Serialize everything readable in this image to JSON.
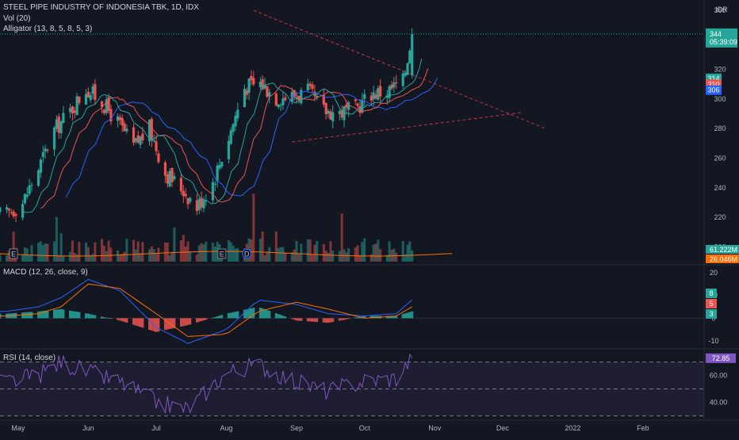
{
  "legend": {
    "symbol_line": "STEEL PIPE INDUSTRY OF INDONESIA TBK, 1D, IDX",
    "vol_line": "Vol (20)",
    "alligator_line": "Alligator (13, 8, 5, 8, 5, 3)",
    "macd_line": "MACD (12, 26, close, 9)",
    "rsi_line": "RSI (14, close)"
  },
  "price_axis": {
    "currency": "IDR",
    "ticks": [
      "360",
      "340",
      "320",
      "300",
      "280",
      "260",
      "240",
      "220",
      "200"
    ],
    "current_price": "344",
    "countdown": "05:39:09",
    "alligator_tags": [
      "314",
      "310",
      "306"
    ],
    "vol_tags": [
      "61.222M",
      "26.046M"
    ]
  },
  "macd_axis": {
    "ticks": [
      "20",
      "10",
      "0",
      "-10"
    ],
    "tags": [
      "8",
      "5",
      "3"
    ]
  },
  "rsi_axis": {
    "ticks": [
      "60.00",
      "40.00"
    ],
    "current": "72.85"
  },
  "time_axis": [
    "May",
    "Jun",
    "Jul",
    "Aug",
    "Sep",
    "Oct",
    "Nov",
    "Dec",
    "2022",
    "Feb"
  ],
  "markers": {
    "earnings": "E",
    "dividend": "D"
  },
  "colors": {
    "background": "#131722",
    "up": "#26a69a",
    "down": "#ef5350",
    "jaw": "#2962ff",
    "teeth": "#ef5350",
    "lips": "#26a69a",
    "macd_line": "#2962ff",
    "signal_line": "#ff6d00",
    "rsi_line": "#7e57c2",
    "trendline": "#f23645"
  },
  "chart_data": [
    {
      "type": "candlestick",
      "title": "STEEL PIPE INDUSTRY OF INDONESIA TBK, 1D, IDX",
      "ylabel": "IDR",
      "ylim": [
        190,
        367
      ],
      "xlim": [
        "2021-04-23",
        "2022-02-28"
      ],
      "grid": false,
      "ohlc_anchors": [
        {
          "date": "2021-04-26",
          "close": 222
        },
        {
          "date": "2021-05-03",
          "close": 230
        },
        {
          "date": "2021-05-10",
          "close": 253
        },
        {
          "date": "2021-05-17",
          "close": 279
        },
        {
          "date": "2021-05-24",
          "close": 292
        },
        {
          "date": "2021-05-31",
          "close": 307
        },
        {
          "date": "2021-06-07",
          "close": 298
        },
        {
          "date": "2021-06-14",
          "close": 284
        },
        {
          "date": "2021-06-21",
          "close": 268
        },
        {
          "date": "2021-06-28",
          "close": 280
        },
        {
          "date": "2021-07-05",
          "close": 250
        },
        {
          "date": "2021-07-12",
          "close": 240
        },
        {
          "date": "2021-07-19",
          "close": 227
        },
        {
          "date": "2021-07-26",
          "close": 244
        },
        {
          "date": "2021-08-02",
          "close": 274
        },
        {
          "date": "2021-08-09",
          "close": 308
        },
        {
          "date": "2021-08-16",
          "close": 311
        },
        {
          "date": "2021-08-23",
          "close": 301
        },
        {
          "date": "2021-08-30",
          "close": 302
        },
        {
          "date": "2021-09-06",
          "close": 305
        },
        {
          "date": "2021-09-13",
          "close": 292
        },
        {
          "date": "2021-09-20",
          "close": 291
        },
        {
          "date": "2021-09-27",
          "close": 293
        },
        {
          "date": "2021-10-04",
          "close": 304
        },
        {
          "date": "2021-10-11",
          "close": 305
        },
        {
          "date": "2021-10-18",
          "close": 312
        },
        {
          "date": "2021-10-22",
          "close": 344
        }
      ],
      "last": {
        "open": 316,
        "high": 348,
        "low": 314,
        "close": 344
      },
      "alligator": {
        "jaw": 306,
        "teeth": 310,
        "lips": 314
      },
      "trendlines": [
        {
          "from": {
            "date": "2021-08-13",
            "price": 360
          },
          "to": {
            "date": "2021-12-20",
            "price": 280
          }
        },
        {
          "from": {
            "date": "2021-08-30",
            "price": 271
          },
          "to": {
            "date": "2021-12-10",
            "price": 291
          }
        }
      ]
    },
    {
      "type": "bar",
      "title": "Vol (20)",
      "latest_volume": "61.222M",
      "volume_ma": "26.046M"
    },
    {
      "type": "line",
      "title": "MACD (12, 26, close, 9)",
      "ylim": [
        -12,
        22
      ],
      "series": [
        {
          "name": "MACD",
          "points": [
            [
              "2021-04-26",
              3
            ],
            [
              "2021-05-10",
              5
            ],
            [
              "2021-05-20",
              9
            ],
            [
              "2021-06-01",
              17
            ],
            [
              "2021-06-15",
              12
            ],
            [
              "2021-07-01",
              -4
            ],
            [
              "2021-07-15",
              -11
            ],
            [
              "2021-08-01",
              -5
            ],
            [
              "2021-08-15",
              8
            ],
            [
              "2021-09-01",
              6
            ],
            [
              "2021-09-15",
              2
            ],
            [
              "2021-10-01",
              1
            ],
            [
              "2021-10-15",
              2
            ],
            [
              "2021-10-22",
              8
            ]
          ]
        },
        {
          "name": "Signal",
          "points": [
            [
              "2021-04-26",
              1
            ],
            [
              "2021-05-10",
              2
            ],
            [
              "2021-05-20",
              5
            ],
            [
              "2021-06-01",
              15
            ],
            [
              "2021-06-15",
              13
            ],
            [
              "2021-07-01",
              2
            ],
            [
              "2021-07-15",
              -8
            ],
            [
              "2021-08-01",
              -7
            ],
            [
              "2021-08-15",
              3
            ],
            [
              "2021-09-01",
              7
            ],
            [
              "2021-09-15",
              4
            ],
            [
              "2021-10-01",
              0
            ],
            [
              "2021-10-15",
              1
            ],
            [
              "2021-10-22",
              5
            ]
          ]
        }
      ],
      "last_values": {
        "macd": 8,
        "signal": 5,
        "histogram": 3
      }
    },
    {
      "type": "line",
      "title": "RSI (14, close)",
      "ylim": [
        28,
        78
      ],
      "bands": [
        70,
        50,
        30
      ],
      "series": [
        {
          "name": "RSI",
          "points": [
            [
              "2021-04-26",
              55
            ],
            [
              "2021-05-10",
              60
            ],
            [
              "2021-05-20",
              70
            ],
            [
              "2021-06-01",
              62
            ],
            [
              "2021-06-15",
              55
            ],
            [
              "2021-07-01",
              40
            ],
            [
              "2021-07-15",
              35
            ],
            [
              "2021-08-01",
              62
            ],
            [
              "2021-08-15",
              68
            ],
            [
              "2021-09-01",
              55
            ],
            [
              "2021-09-15",
              48
            ],
            [
              "2021-10-01",
              56
            ],
            [
              "2021-10-15",
              58
            ],
            [
              "2021-10-22",
              72.85
            ]
          ]
        }
      ],
      "last_value": 72.85
    }
  ]
}
